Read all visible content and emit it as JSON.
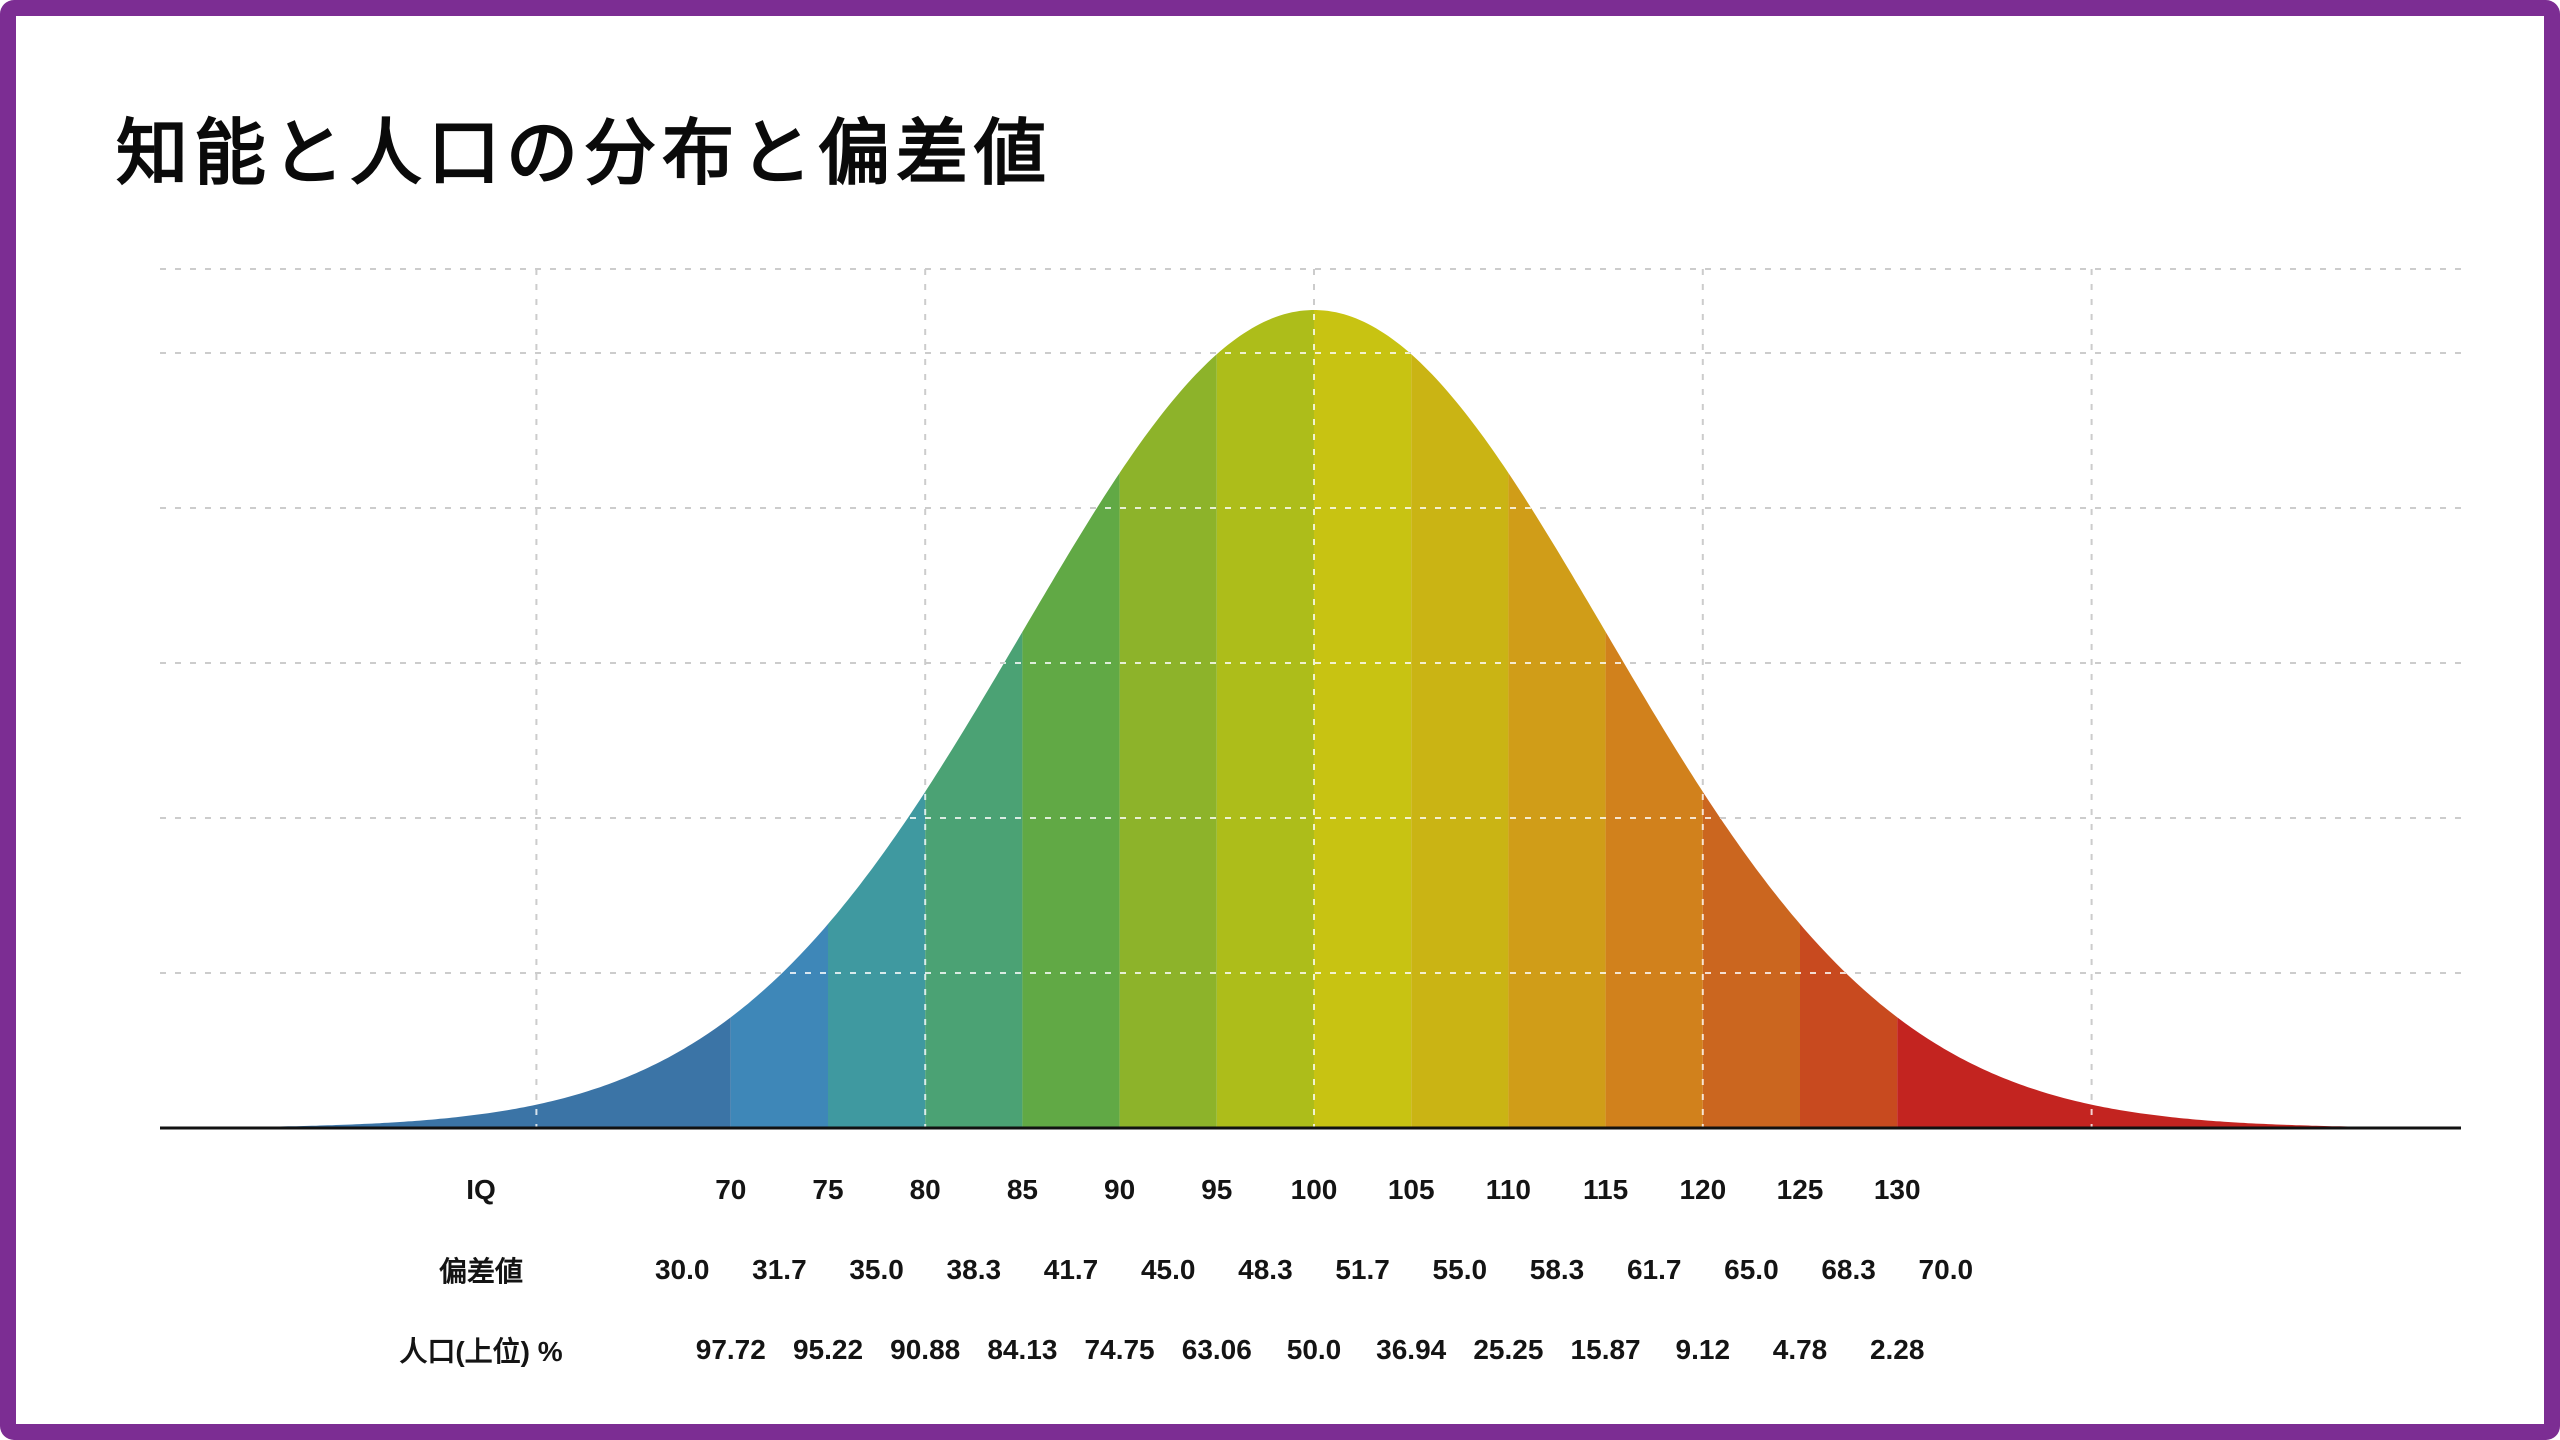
{
  "frame": {
    "border_color": "#7c2d93",
    "background_color": "#ffffff"
  },
  "chart_data": {
    "type": "area",
    "title": "知能と人口の分布と偏差値",
    "distribution": {
      "kind": "normal",
      "mean": 100,
      "sd": 15,
      "x_domain": [
        40,
        160
      ]
    },
    "x_axis": {
      "variable": "IQ",
      "grid_iqs": [
        60,
        80,
        100,
        120,
        140
      ]
    },
    "grid": {
      "visible": true,
      "style": "dashed",
      "color_outside": "#cccccc",
      "color_inside_fill": "#ffffff"
    },
    "axis_line_color": "#111111",
    "bands": [
      {
        "iq_from": 40,
        "iq_to": 70,
        "color": "#3b74a6"
      },
      {
        "iq_from": 70,
        "iq_to": 75,
        "color": "#3e87b8"
      },
      {
        "iq_from": 75,
        "iq_to": 80,
        "color": "#3f99a0"
      },
      {
        "iq_from": 80,
        "iq_to": 85,
        "color": "#4ba274"
      },
      {
        "iq_from": 85,
        "iq_to": 90,
        "color": "#61a945"
      },
      {
        "iq_from": 90,
        "iq_to": 95,
        "color": "#8db32a"
      },
      {
        "iq_from": 95,
        "iq_to": 100,
        "color": "#adbd1a"
      },
      {
        "iq_from": 100,
        "iq_to": 105,
        "color": "#c8c312"
      },
      {
        "iq_from": 105,
        "iq_to": 110,
        "color": "#cab414"
      },
      {
        "iq_from": 110,
        "iq_to": 115,
        "color": "#d09d18"
      },
      {
        "iq_from": 115,
        "iq_to": 120,
        "color": "#d1811c"
      },
      {
        "iq_from": 120,
        "iq_to": 125,
        "color": "#cb661f"
      },
      {
        "iq_from": 125,
        "iq_to": 130,
        "color": "#c84a1f"
      },
      {
        "iq_from": 130,
        "iq_to": 160,
        "color": "#c32420"
      }
    ],
    "rows": [
      {
        "key": "iq",
        "label": "IQ",
        "iq_positions": [
          70,
          75,
          80,
          85,
          90,
          95,
          100,
          105,
          110,
          115,
          120,
          125,
          130
        ],
        "values": [
          "70",
          "75",
          "80",
          "85",
          "90",
          "95",
          "100",
          "105",
          "110",
          "115",
          "120",
          "125",
          "130"
        ]
      },
      {
        "key": "hensachi",
        "label": "偏差値",
        "iq_positions": [
          67.5,
          72.5,
          77.5,
          82.5,
          87.5,
          92.5,
          97.5,
          102.5,
          107.5,
          112.5,
          117.5,
          122.5,
          127.5,
          132.5
        ],
        "values": [
          "30.0",
          "31.7",
          "35.0",
          "38.3",
          "41.7",
          "45.0",
          "48.3",
          "51.7",
          "55.0",
          "58.3",
          "61.7",
          "65.0",
          "68.3",
          "70.0"
        ]
      },
      {
        "key": "population",
        "label": "人口(上位) %",
        "iq_positions": [
          70,
          75,
          80,
          85,
          90,
          95,
          100,
          105,
          110,
          115,
          120,
          125,
          130
        ],
        "values": [
          "97.72",
          "95.22",
          "90.88",
          "84.13",
          "74.75",
          "63.06",
          "50.0",
          "36.94",
          "25.25",
          "15.87",
          "9.12",
          "4.78",
          "2.28"
        ]
      }
    ]
  }
}
